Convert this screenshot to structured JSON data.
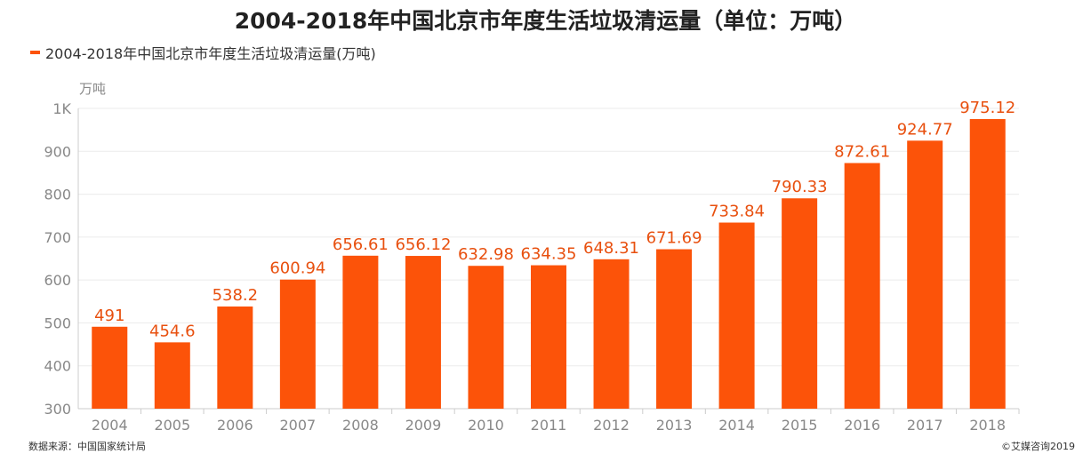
{
  "chart_data": {
    "type": "bar",
    "title": "2004-2018年中国北京市年度生活垃圾清运量（单位：万吨）",
    "legend": "2004-2018年中国北京市年度生活垃圾清运量(万吨)",
    "ylabel": "万吨",
    "xlabel": "",
    "ylim": [
      300,
      1000
    ],
    "yticks": [
      300,
      400,
      500,
      600,
      700,
      800,
      900,
      1000
    ],
    "ytick_labels": [
      "300",
      "400",
      "500",
      "600",
      "700",
      "800",
      "900",
      "1K"
    ],
    "categories": [
      "2004",
      "2005",
      "2006",
      "2007",
      "2008",
      "2009",
      "2010",
      "2011",
      "2012",
      "2013",
      "2014",
      "2015",
      "2016",
      "2017",
      "2018"
    ],
    "values": [
      491,
      454.6,
      538.2,
      600.94,
      656.61,
      656.12,
      632.98,
      634.35,
      648.31,
      671.69,
      733.84,
      790.33,
      872.61,
      924.77,
      975.12
    ],
    "value_labels": [
      "491",
      "454.6",
      "538.2",
      "600.94",
      "656.61",
      "656.12",
      "632.98",
      "634.35",
      "648.31",
      "671.69",
      "733.84",
      "790.33",
      "872.61",
      "924.77",
      "975.12"
    ],
    "grid": true,
    "legend_position": "top-left"
  },
  "footer": {
    "source": "数据来源：中国国家统计局",
    "copyright": "©艾媒咨询2019"
  },
  "colors": {
    "bar": "#fc5309",
    "label": "#e8500f",
    "grid": "#ebebeb",
    "axis": "#cccccc"
  }
}
